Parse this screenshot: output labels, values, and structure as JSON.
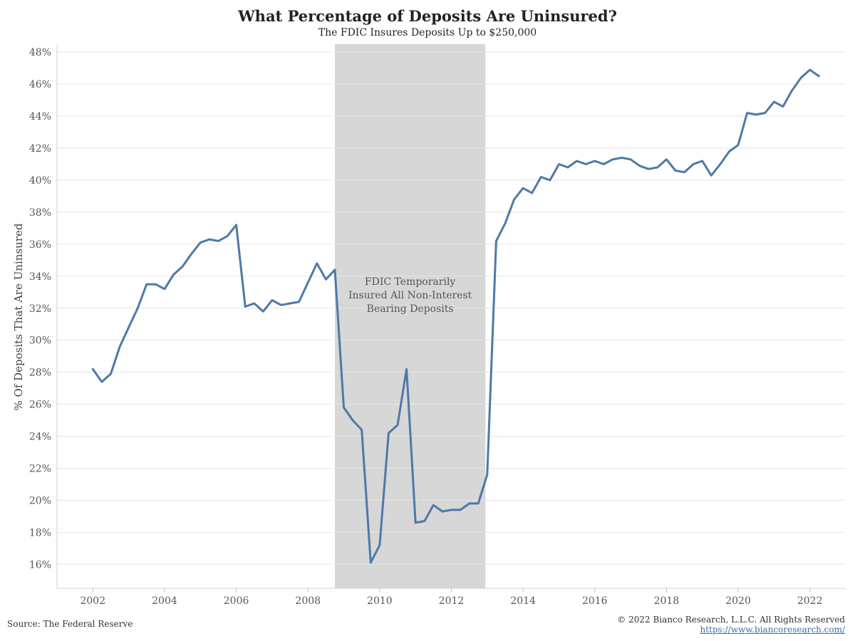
{
  "chart_data": {
    "type": "line",
    "title": "What Percentage of Deposits Are Uninsured?",
    "subtitle": "The FDIC Insures Deposits Up to $250,000",
    "ylabel": "% Of Deposits That Are Uninsured",
    "xlabel": "",
    "ylim": [
      14.5,
      48.5
    ],
    "xlim": [
      2001.0,
      2023.0
    ],
    "y_ticks": [
      16,
      18,
      20,
      22,
      24,
      26,
      28,
      30,
      32,
      34,
      36,
      38,
      40,
      42,
      44,
      46,
      48
    ],
    "y_tick_labels": [
      "16%",
      "18%",
      "20%",
      "22%",
      "24%",
      "26%",
      "28%",
      "30%",
      "32%",
      "34%",
      "36%",
      "38%",
      "40%",
      "42%",
      "44%",
      "46%",
      "48%"
    ],
    "x_ticks": [
      2002,
      2004,
      2006,
      2008,
      2010,
      2012,
      2014,
      2016,
      2018,
      2020,
      2022
    ],
    "x_tick_labels": [
      "2002",
      "2004",
      "2006",
      "2008",
      "2010",
      "2012",
      "2014",
      "2016",
      "2018",
      "2020",
      "2022"
    ],
    "grid": "horizontal",
    "line_color": "#4e79a7",
    "shade_color": "#d7d7d7",
    "shaded_region": {
      "x_start": 2008.75,
      "x_end": 2012.95,
      "label_lines": [
        "FDIC Temporarily",
        "Insured All Non-Interest",
        "Bearing Deposits"
      ]
    },
    "series": [
      {
        "x": [
          2002.0,
          2002.25,
          2002.5,
          2002.75,
          2003.0,
          2003.25,
          2003.5,
          2003.75,
          2004.0,
          2004.25,
          2004.5,
          2004.75,
          2005.0,
          2005.25,
          2005.5,
          2005.75,
          2006.0,
          2006.25,
          2006.5,
          2006.75,
          2007.0,
          2007.25,
          2007.5,
          2007.75,
          2008.0,
          2008.25,
          2008.5,
          2008.75,
          2009.0,
          2009.25,
          2009.5,
          2009.75,
          2010.0,
          2010.25,
          2010.5,
          2010.75,
          2011.0,
          2011.25,
          2011.5,
          2011.75,
          2012.0,
          2012.25,
          2012.5,
          2012.75,
          2013.0,
          2013.25,
          2013.5,
          2013.75,
          2014.0,
          2014.25,
          2014.5,
          2014.75,
          2015.0,
          2015.25,
          2015.5,
          2015.75,
          2016.0,
          2016.25,
          2016.5,
          2016.75,
          2017.0,
          2017.25,
          2017.5,
          2017.75,
          2018.0,
          2018.25,
          2018.5,
          2018.75,
          2019.0,
          2019.25,
          2019.5,
          2019.75,
          2020.0,
          2020.25,
          2020.5,
          2020.75,
          2021.0,
          2021.25,
          2021.5,
          2021.75,
          2022.0,
          2022.25
        ],
        "values": [
          28.2,
          27.4,
          27.9,
          29.6,
          30.8,
          32.0,
          33.5,
          33.5,
          33.2,
          34.1,
          34.6,
          35.4,
          36.1,
          36.3,
          36.2,
          36.5,
          37.2,
          32.1,
          32.3,
          31.8,
          32.5,
          32.2,
          32.3,
          32.4,
          33.6,
          34.8,
          33.8,
          34.4,
          25.8,
          25.0,
          24.4,
          16.1,
          17.2,
          24.2,
          24.7,
          28.2,
          18.6,
          18.7,
          19.7,
          19.3,
          19.4,
          19.4,
          19.8,
          19.8,
          21.6,
          36.2,
          37.3,
          38.8,
          39.5,
          39.2,
          40.2,
          40.0,
          41.0,
          40.8,
          41.2,
          41.0,
          41.2,
          41.0,
          41.3,
          41.4,
          41.3,
          40.9,
          40.7,
          40.8,
          41.3,
          40.6,
          40.5,
          41.0,
          41.2,
          40.3,
          41.0,
          41.8,
          42.2,
          44.2,
          44.1,
          44.2,
          44.9,
          44.6,
          45.6,
          46.4,
          46.9,
          46.5
        ]
      }
    ]
  },
  "footer": {
    "source": "Source: The Federal Reserve",
    "copyright": "© 2022 Bianco Research, L.L.C. All Rights Reserved",
    "url": "https://www.biancoresearch.com/"
  }
}
